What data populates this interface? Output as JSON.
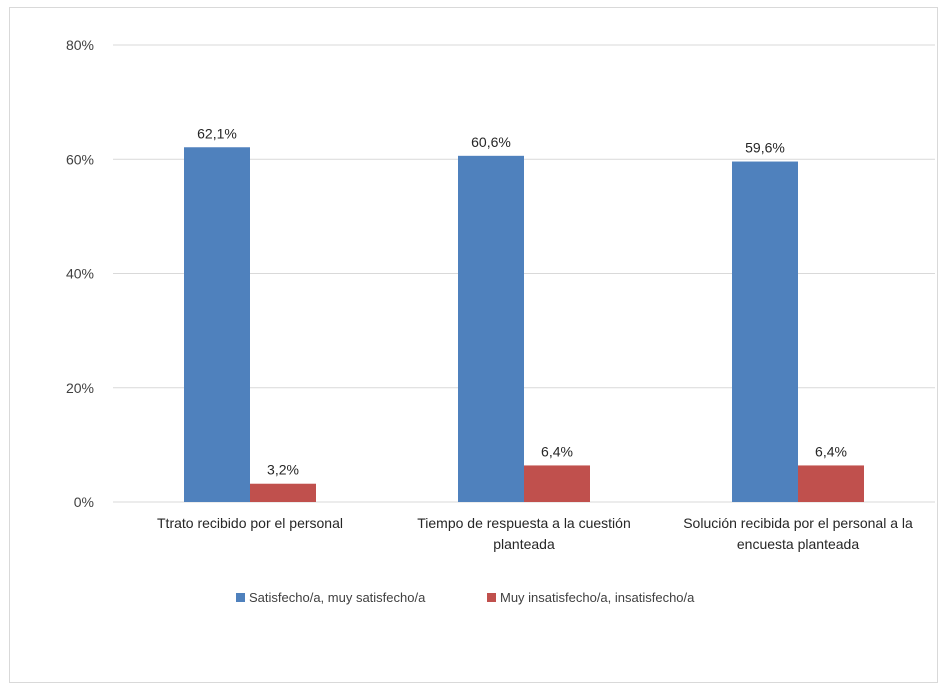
{
  "chart_data": {
    "type": "bar",
    "categories": [
      [
        "Ttrato recibido por el personal"
      ],
      [
        "Tiempo de respuesta a la cuestión",
        "planteada"
      ],
      [
        "Solución recibida por el personal a la",
        "encuesta planteada"
      ]
    ],
    "series": [
      {
        "name": "Satisfecho/a, muy satisfecho/a",
        "values": [
          62.1,
          60.6,
          59.6
        ],
        "labels": [
          "62,1%",
          "60,6%",
          "59,6%"
        ],
        "color": "#4f81bd"
      },
      {
        "name": "Muy insatisfecho/a, insatisfecho/a",
        "values": [
          3.2,
          6.4,
          6.4
        ],
        "labels": [
          "3,2%",
          "6,4%",
          "6,4%"
        ],
        "color": "#c0504d"
      }
    ],
    "ylim": [
      0,
      80
    ],
    "yticks": [
      0,
      20,
      40,
      60,
      80
    ],
    "ytick_labels": [
      "0%",
      "20%",
      "40%",
      "60%",
      "80%"
    ],
    "grid": true,
    "gridline_color": "#d9d9d9",
    "legend_position": "bottom"
  }
}
